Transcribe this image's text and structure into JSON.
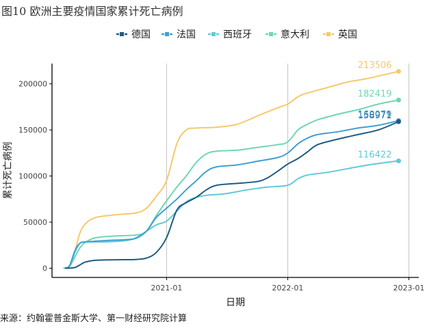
{
  "title": "图10 欧洲主要疫情国家累计死亡病例",
  "source": "来源：约翰霍普金斯大学、第一财经研究院计算",
  "chart_data": {
    "type": "line",
    "title": "图10 欧洲主要疫情国家累计死亡病例",
    "xlabel": "日期",
    "ylabel": "累计死亡病例",
    "x_tick_labels": [
      "2021-01",
      "2022-01",
      "2023-01"
    ],
    "x_ticks": [
      "2021-01-01",
      "2022-01-01",
      "2023-01-01"
    ],
    "y_ticks": [
      0,
      50000,
      100000,
      150000,
      200000
    ],
    "y_tick_labels": [
      "0",
      "50000",
      "100000",
      "150000",
      "200000"
    ],
    "xlim": [
      "2020-01-22",
      "2023-01-31"
    ],
    "ylim": [
      -10000,
      222000
    ],
    "grid": "vertical",
    "legend_position": "top",
    "series": [
      {
        "name": "德国",
        "color": "#1f5b82",
        "end_label": "158971",
        "points": [
          [
            "2020-03-01",
            0
          ],
          [
            "2020-03-15",
            50
          ],
          [
            "2020-04-01",
            900
          ],
          [
            "2020-04-15",
            3500
          ],
          [
            "2020-05-01",
            6600
          ],
          [
            "2020-06-01",
            8600
          ],
          [
            "2020-08-01",
            9200
          ],
          [
            "2020-10-01",
            9500
          ],
          [
            "2020-11-01",
            11000
          ],
          [
            "2020-12-01",
            17000
          ],
          [
            "2021-01-01",
            33000
          ],
          [
            "2021-02-01",
            63000
          ],
          [
            "2021-03-01",
            71000
          ],
          [
            "2021-04-01",
            77000
          ],
          [
            "2021-05-01",
            85000
          ],
          [
            "2021-06-01",
            90000
          ],
          [
            "2021-08-01",
            92000
          ],
          [
            "2021-10-01",
            94000
          ],
          [
            "2021-11-01",
            98000
          ],
          [
            "2021-12-01",
            105000
          ],
          [
            "2022-01-01",
            113000
          ],
          [
            "2022-02-01",
            119000
          ],
          [
            "2022-03-01",
            126000
          ],
          [
            "2022-04-01",
            134000
          ],
          [
            "2022-06-01",
            140000
          ],
          [
            "2022-08-01",
            145000
          ],
          [
            "2022-10-01",
            150000
          ],
          [
            "2022-12-01",
            158971
          ]
        ]
      },
      {
        "name": "法国",
        "color": "#3fa0d2",
        "end_label": "160079",
        "points": [
          [
            "2020-03-01",
            0
          ],
          [
            "2020-03-15",
            3000
          ],
          [
            "2020-04-01",
            20000
          ],
          [
            "2020-04-15",
            27000
          ],
          [
            "2020-05-01",
            28500
          ],
          [
            "2020-07-01",
            30000
          ],
          [
            "2020-09-01",
            31000
          ],
          [
            "2020-10-01",
            32500
          ],
          [
            "2020-11-01",
            40000
          ],
          [
            "2020-12-01",
            55000
          ],
          [
            "2021-01-01",
            65000
          ],
          [
            "2021-02-01",
            75000
          ],
          [
            "2021-03-01",
            85000
          ],
          [
            "2021-04-01",
            95000
          ],
          [
            "2021-05-01",
            105000
          ],
          [
            "2021-06-01",
            110000
          ],
          [
            "2021-08-01",
            112000
          ],
          [
            "2021-10-01",
            116000
          ],
          [
            "2021-12-01",
            120000
          ],
          [
            "2022-01-01",
            125000
          ],
          [
            "2022-02-01",
            135000
          ],
          [
            "2022-03-01",
            141000
          ],
          [
            "2022-04-01",
            145000
          ],
          [
            "2022-06-01",
            148000
          ],
          [
            "2022-08-01",
            152000
          ],
          [
            "2022-10-01",
            155000
          ],
          [
            "2022-12-01",
            160079
          ]
        ]
      },
      {
        "name": "西班牙",
        "color": "#5fcad6",
        "end_label": "116422",
        "points": [
          [
            "2020-03-01",
            0
          ],
          [
            "2020-03-15",
            2000
          ],
          [
            "2020-04-01",
            18000
          ],
          [
            "2020-04-15",
            27000
          ],
          [
            "2020-05-01",
            28500
          ],
          [
            "2020-07-01",
            28500
          ],
          [
            "2020-09-01",
            30000
          ],
          [
            "2020-10-01",
            33000
          ],
          [
            "2020-11-01",
            40000
          ],
          [
            "2020-12-01",
            47000
          ],
          [
            "2021-01-01",
            51000
          ],
          [
            "2021-02-01",
            62000
          ],
          [
            "2021-03-01",
            72000
          ],
          [
            "2021-04-01",
            77000
          ],
          [
            "2021-05-01",
            79000
          ],
          [
            "2021-07-01",
            81000
          ],
          [
            "2021-09-01",
            85000
          ],
          [
            "2021-11-01",
            88000
          ],
          [
            "2022-01-01",
            90000
          ],
          [
            "2022-02-01",
            97000
          ],
          [
            "2022-03-01",
            101000
          ],
          [
            "2022-05-01",
            104000
          ],
          [
            "2022-07-01",
            108000
          ],
          [
            "2022-09-01",
            112000
          ],
          [
            "2022-12-01",
            116422
          ]
        ]
      },
      {
        "name": "意大利",
        "color": "#6fd6b3",
        "end_label": "182419",
        "points": [
          [
            "2020-02-25",
            0
          ],
          [
            "2020-03-15",
            2000
          ],
          [
            "2020-04-01",
            13000
          ],
          [
            "2020-04-15",
            22000
          ],
          [
            "2020-05-01",
            28000
          ],
          [
            "2020-06-01",
            33000
          ],
          [
            "2020-08-01",
            35000
          ],
          [
            "2020-10-01",
            36000
          ],
          [
            "2020-11-01",
            40000
          ],
          [
            "2020-12-01",
            57000
          ],
          [
            "2021-01-01",
            73000
          ],
          [
            "2021-02-01",
            88000
          ],
          [
            "2021-03-01",
            100000
          ],
          [
            "2021-04-01",
            115000
          ],
          [
            "2021-05-01",
            124000
          ],
          [
            "2021-06-01",
            127000
          ],
          [
            "2021-08-01",
            128000
          ],
          [
            "2021-10-01",
            131000
          ],
          [
            "2021-12-01",
            134000
          ],
          [
            "2022-01-01",
            137000
          ],
          [
            "2022-02-01",
            150000
          ],
          [
            "2022-03-01",
            156000
          ],
          [
            "2022-04-01",
            161000
          ],
          [
            "2022-06-01",
            167000
          ],
          [
            "2022-08-01",
            172000
          ],
          [
            "2022-10-01",
            178000
          ],
          [
            "2022-12-01",
            182419
          ]
        ]
      },
      {
        "name": "英国",
        "color": "#f5c96a",
        "end_label": "213506",
        "points": [
          [
            "2020-03-01",
            0
          ],
          [
            "2020-03-15",
            2000
          ],
          [
            "2020-04-01",
            20000
          ],
          [
            "2020-04-15",
            38000
          ],
          [
            "2020-05-01",
            48000
          ],
          [
            "2020-06-01",
            55000
          ],
          [
            "2020-08-01",
            58000
          ],
          [
            "2020-10-01",
            60000
          ],
          [
            "2020-11-01",
            65000
          ],
          [
            "2020-12-01",
            78000
          ],
          [
            "2021-01-01",
            95000
          ],
          [
            "2021-02-01",
            135000
          ],
          [
            "2021-03-01",
            150000
          ],
          [
            "2021-04-01",
            152000
          ],
          [
            "2021-06-01",
            153000
          ],
          [
            "2021-08-01",
            156000
          ],
          [
            "2021-10-01",
            165000
          ],
          [
            "2021-12-01",
            174000
          ],
          [
            "2022-01-01",
            178000
          ],
          [
            "2022-02-01",
            186000
          ],
          [
            "2022-03-01",
            190000
          ],
          [
            "2022-05-01",
            196000
          ],
          [
            "2022-07-01",
            202000
          ],
          [
            "2022-09-01",
            206000
          ],
          [
            "2022-12-01",
            213506
          ]
        ]
      }
    ]
  }
}
